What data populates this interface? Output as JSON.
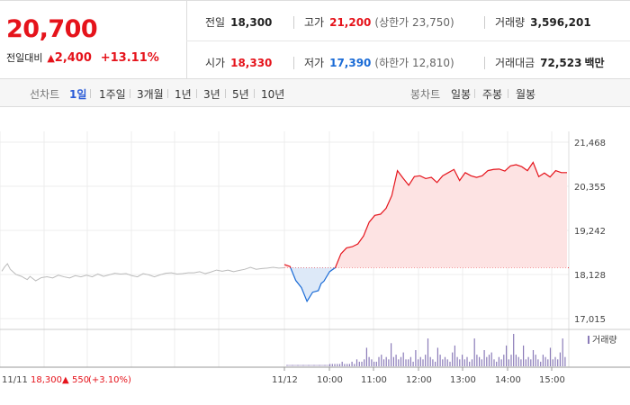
{
  "summary": {
    "price": "20,700",
    "change_label": "전일대비",
    "change_icon": "up-triangle-icon",
    "change_amount": "2,400",
    "change_percent": "+13.11%",
    "prev_close": {
      "label": "전일",
      "value": "18,300"
    },
    "high": {
      "label": "고가",
      "value": "21,200",
      "sub": "(상한가 23,750)"
    },
    "volume": {
      "label": "거래량",
      "value": "3,596,201"
    },
    "open": {
      "label": "시가",
      "value": "18,330"
    },
    "low": {
      "label": "저가",
      "value": "17,390",
      "sub": "(하한가 12,810)"
    },
    "amount": {
      "label": "거래대금",
      "value": "72,523",
      "unit": "백만"
    }
  },
  "periods": {
    "label": "선차트",
    "items": [
      "1일",
      "1주일",
      "3개월",
      "1년",
      "3년",
      "5년",
      "10년"
    ],
    "active": "1일"
  },
  "candles": {
    "label": "봉차트",
    "items": [
      "일봉",
      "주봉",
      "월봉"
    ]
  },
  "colors": {
    "up": "#e5131b",
    "down": "#1a6bd6",
    "prev": "#bbbbbb",
    "fill_up": "#fde3e3",
    "fill_down": "#dde9f8",
    "volume": "#8a7bb8"
  },
  "chart_data": {
    "type": "line",
    "yticks": [
      "21,468",
      "20,355",
      "19,242",
      "18,128",
      "17,015"
    ],
    "ylim": [
      17015,
      21468
    ],
    "reference": 18300,
    "xticks": [
      "11/12",
      "10:00",
      "11:00",
      "12:00",
      "13:00",
      "14:00",
      "15:00"
    ],
    "prev_day_label": "11/11",
    "prev_day_close": "18,300",
    "prev_day_icon": "up-triangle-icon",
    "prev_day_change": "550",
    "prev_day_pct": "(+3.10%)",
    "volume_legend": "거래량",
    "prev_series": {
      "name": "11/11",
      "x": [
        0.0,
        0.01,
        0.02,
        0.03,
        0.05,
        0.07,
        0.08,
        0.09,
        0.1,
        0.12,
        0.14,
        0.16,
        0.18,
        0.2,
        0.22,
        0.24,
        0.26,
        0.28,
        0.3,
        0.32,
        0.34,
        0.36,
        0.38,
        0.4,
        0.42,
        0.44,
        0.46,
        0.48,
        0.5,
        0.52,
        0.54,
        0.56,
        0.58,
        0.6,
        0.62,
        0.64,
        0.66,
        0.68,
        0.7,
        0.72,
        0.74,
        0.76,
        0.78,
        0.8,
        0.82,
        0.84,
        0.86,
        0.88,
        0.9,
        0.92,
        0.94,
        0.96,
        0.98,
        1.0
      ],
      "y": [
        18210,
        18320,
        18400,
        18260,
        18130,
        18080,
        18040,
        18000,
        18080,
        17970,
        18050,
        18070,
        18040,
        18110,
        18070,
        18040,
        18100,
        18070,
        18110,
        18070,
        18140,
        18080,
        18120,
        18160,
        18140,
        18150,
        18100,
        18070,
        18150,
        18120,
        18070,
        18120,
        18160,
        18170,
        18140,
        18150,
        18170,
        18170,
        18200,
        18150,
        18190,
        18240,
        18210,
        18240,
        18200,
        18230,
        18260,
        18310,
        18260,
        18280,
        18290,
        18310,
        18290,
        18300
      ]
    },
    "today_series": {
      "name": "11/12",
      "x": [
        0.0,
        0.02,
        0.04,
        0.06,
        0.08,
        0.1,
        0.12,
        0.13,
        0.14,
        0.16,
        0.18,
        0.2,
        0.22,
        0.24,
        0.26,
        0.28,
        0.3,
        0.32,
        0.34,
        0.36,
        0.38,
        0.4,
        0.42,
        0.44,
        0.46,
        0.48,
        0.5,
        0.52,
        0.54,
        0.56,
        0.58,
        0.6,
        0.62,
        0.64,
        0.66,
        0.68,
        0.7,
        0.72,
        0.74,
        0.76,
        0.78,
        0.8,
        0.82,
        0.84,
        0.86,
        0.88,
        0.9,
        0.92,
        0.94,
        0.96,
        0.98,
        1.0
      ],
      "y": [
        18380,
        18330,
        17980,
        17800,
        17450,
        17680,
        17720,
        17900,
        17960,
        18200,
        18300,
        18650,
        18800,
        18830,
        18900,
        19100,
        19450,
        19620,
        19650,
        19800,
        20120,
        20750,
        20560,
        20380,
        20600,
        20620,
        20550,
        20580,
        20450,
        20620,
        20700,
        20780,
        20500,
        20700,
        20620,
        20580,
        20620,
        20750,
        20780,
        20790,
        20740,
        20870,
        20900,
        20850,
        20750,
        20960,
        20600,
        20690,
        20590,
        20750,
        20700,
        20700
      ]
    },
    "volume_bars": [
      1,
      1,
      1,
      1,
      1,
      2,
      1,
      1,
      1,
      2,
      1,
      3,
      2,
      2,
      3,
      8,
      4,
      3,
      2,
      2,
      4,
      5,
      3,
      4,
      3,
      10,
      4,
      5,
      3,
      4,
      6,
      3,
      3,
      4,
      2,
      7,
      3,
      4,
      3,
      5,
      12,
      4,
      3,
      2,
      8,
      5,
      3,
      4,
      3,
      2,
      6,
      9,
      4,
      3,
      5,
      3,
      4,
      2,
      3,
      12,
      5,
      4,
      3,
      7,
      4,
      5,
      6,
      3,
      2,
      4,
      3,
      5,
      9,
      3,
      5,
      14,
      5,
      4,
      3,
      9,
      3,
      4,
      3,
      7,
      5,
      3,
      2,
      5,
      4,
      3,
      8,
      3,
      4,
      3,
      6,
      12,
      4
    ]
  }
}
